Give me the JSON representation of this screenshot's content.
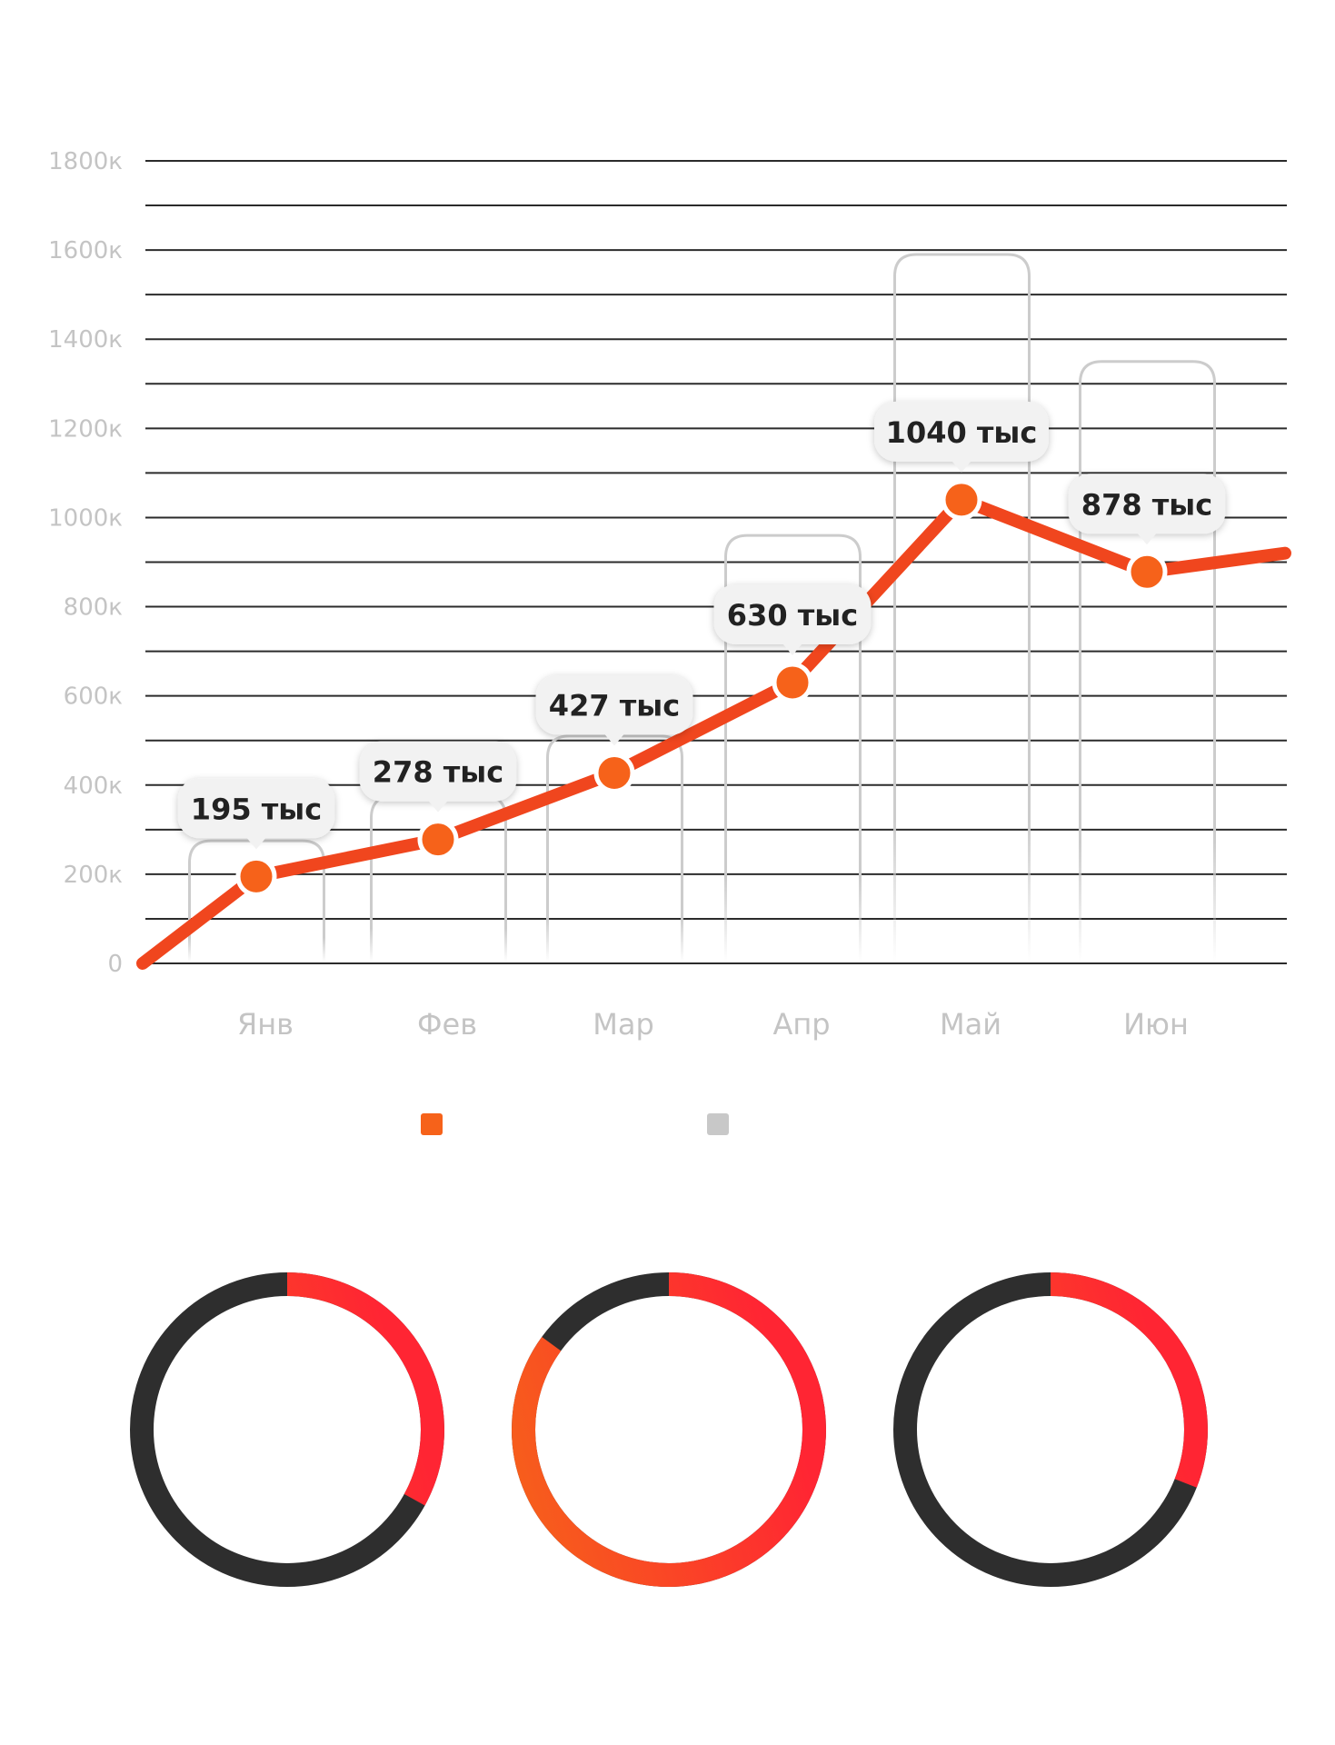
{
  "chart_data": [
    {
      "type": "line",
      "categories": [
        "Янв",
        "Фев",
        "Мар",
        "Апр",
        "Май",
        "Июн"
      ],
      "yticks": [
        "0",
        "200к",
        "400к",
        "600к",
        "800к",
        "1000к",
        "1200к",
        "1400к",
        "1600к",
        "1800к"
      ],
      "ylim": [
        0,
        1800
      ],
      "grid": true,
      "series": [
        {
          "color": "#f0461e",
          "marker_color": "#f6621a",
          "start_value": 0,
          "values": [
            195,
            278,
            427,
            630,
            1040,
            878
          ],
          "end_value": 920,
          "labels": [
            "195 тыс",
            "278 тыс",
            "427 тыс",
            "630 тыс",
            "1040 тыс",
            "878 тыс"
          ]
        },
        {
          "color": "#c8c8c8",
          "style": "outlined-columns",
          "values": [
            275,
            375,
            510,
            960,
            1590,
            1350
          ]
        }
      ],
      "legend": {
        "placement": "bottom-center",
        "items": [
          {
            "label": "",
            "color": "#f6621a"
          },
          {
            "label": "",
            "color": "#c8c8c8"
          }
        ]
      }
    },
    {
      "type": "donut",
      "track_color": "#2e2e2e",
      "gradient": [
        "#f6621a",
        "#ff2533"
      ],
      "items": [
        {
          "fraction": 0.33
        },
        {
          "fraction": 0.85
        },
        {
          "fraction": 0.31
        }
      ]
    }
  ]
}
